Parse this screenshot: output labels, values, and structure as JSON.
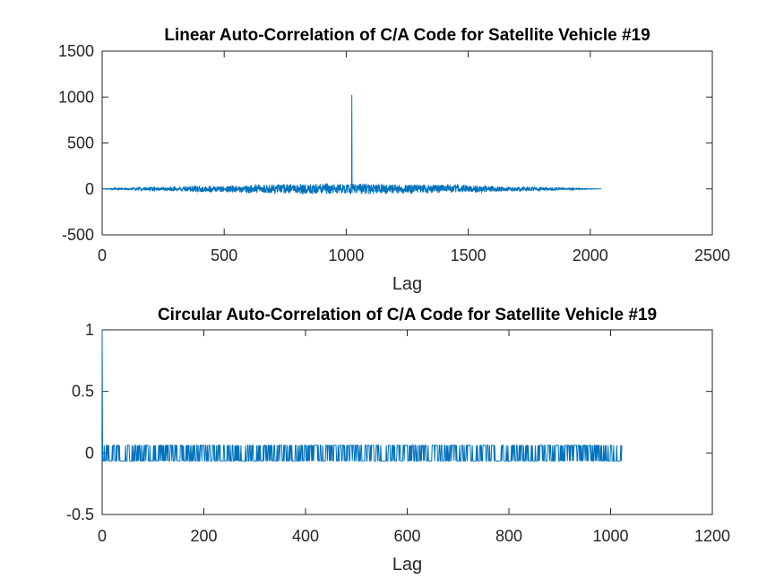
{
  "chart_data": [
    {
      "type": "line",
      "title": "Linear Auto-Correlation of C/A Code for Satellite Vehicle #19",
      "xlabel": "Lag",
      "ylabel": "",
      "xlim": [
        0,
        2500
      ],
      "ylim": [
        -500,
        1500
      ],
      "xticks": [
        0,
        500,
        1000,
        1500,
        2000,
        2500
      ],
      "yticks": [
        -500,
        0,
        500,
        1000,
        1500
      ],
      "xtick_labels": [
        "0",
        "500",
        "1000",
        "1500",
        "2000",
        "2500"
      ],
      "ytick_labels": [
        "-500",
        "0",
        "500",
        "1000",
        "1500"
      ],
      "grid": false,
      "line_color": "#0072BD",
      "series": [
        {
          "x": [
            1,
            60,
            120,
            180,
            240,
            300,
            360,
            420,
            480,
            540,
            600,
            660,
            720,
            780,
            840,
            900,
            960,
            1000,
            1015,
            1020,
            1022,
            1023,
            1024,
            1026,
            1030,
            1045,
            1080,
            1140,
            1200,
            1260,
            1320,
            1380,
            1440,
            1500,
            1560,
            1620,
            1680,
            1740,
            1800,
            1860,
            1920,
            1980,
            2045
          ],
          "y": [
            0,
            10,
            -15,
            20,
            -20,
            25,
            -30,
            35,
            -35,
            40,
            -45,
            50,
            -50,
            55,
            -55,
            60,
            -55,
            55,
            -50,
            60,
            65,
            1023,
            65,
            -60,
            55,
            -55,
            60,
            -55,
            55,
            -50,
            50,
            -45,
            45,
            -40,
            35,
            -30,
            25,
            -25,
            20,
            -15,
            10,
            -5,
            0
          ]
        }
      ]
    },
    {
      "type": "line",
      "title": "Circular Auto-Correlation of C/A Code for Satellite Vehicle #19",
      "xlabel": "Lag",
      "ylabel": "",
      "xlim": [
        0,
        1200
      ],
      "ylim": [
        -0.5,
        1
      ],
      "xticks": [
        0,
        200,
        400,
        600,
        800,
        1000,
        1200
      ],
      "yticks": [
        -0.5,
        0,
        0.5,
        1
      ],
      "xtick_labels": [
        "0",
        "200",
        "400",
        "600",
        "800",
        "1000",
        "1200"
      ],
      "ytick_labels": [
        "-0.5",
        "0",
        "0.5",
        "1"
      ],
      "grid": false,
      "line_color": "#0072BD",
      "series": [
        {
          "x": [
            0,
            1,
            2,
            1022
          ],
          "y": [
            1,
            0.0626,
            -0.0645,
            -0.0645
          ],
          "levels": [
            0.0626,
            -0.0645
          ],
          "note_levels": ""
        }
      ]
    }
  ]
}
